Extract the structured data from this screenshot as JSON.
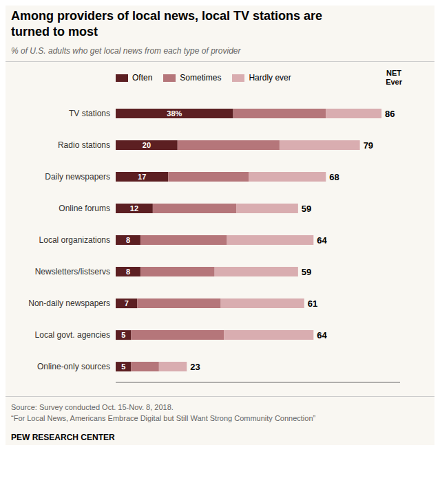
{
  "chart_data": {
    "type": "bar",
    "orientation": "horizontal",
    "stacked": true,
    "title": "Among providers of local news, local TV stations are\nturned to most",
    "subtitle": "% of U.S. adults who get local news from each type of provider",
    "categories": [
      "TV stations",
      "Radio stations",
      "Daily newspapers",
      "Online forums",
      "Local organizations",
      "Newsletters/listservs",
      "Non-daily newspapers",
      "Local govt. agencies",
      "Online-only sources"
    ],
    "series": [
      {
        "name": "Often",
        "color": "#5c1f22",
        "values": [
          38,
          20,
          17,
          12,
          8,
          8,
          7,
          5,
          5
        ],
        "data_labels": true,
        "value_labels": [
          "38%",
          "20",
          "17",
          "12",
          "8",
          "8",
          "7",
          "5",
          "5"
        ]
      },
      {
        "name": "Sometimes",
        "color": "#b5767a",
        "values": [
          30,
          33,
          26,
          27,
          28,
          24,
          27,
          30,
          9
        ]
      },
      {
        "name": "Hardly ever",
        "color": "#d9adb0",
        "values": [
          18,
          26,
          25,
          20,
          28,
          27,
          27,
          29,
          9
        ]
      }
    ],
    "net_ever": [
      86,
      79,
      68,
      59,
      64,
      59,
      61,
      64,
      23
    ],
    "net_ever_header": [
      "NET",
      "Ever"
    ],
    "xlim": [
      0,
      92
    ],
    "tick_labels": "y",
    "grid": false,
    "legend": "top",
    "notes": [
      "Source: Survey conducted Oct. 15-Nov. 8, 2018.",
      "“For Local News, Americans Embrace Digital but Still Want Strong Community Connection”"
    ],
    "footer": "PEW RESEARCH CENTER"
  }
}
